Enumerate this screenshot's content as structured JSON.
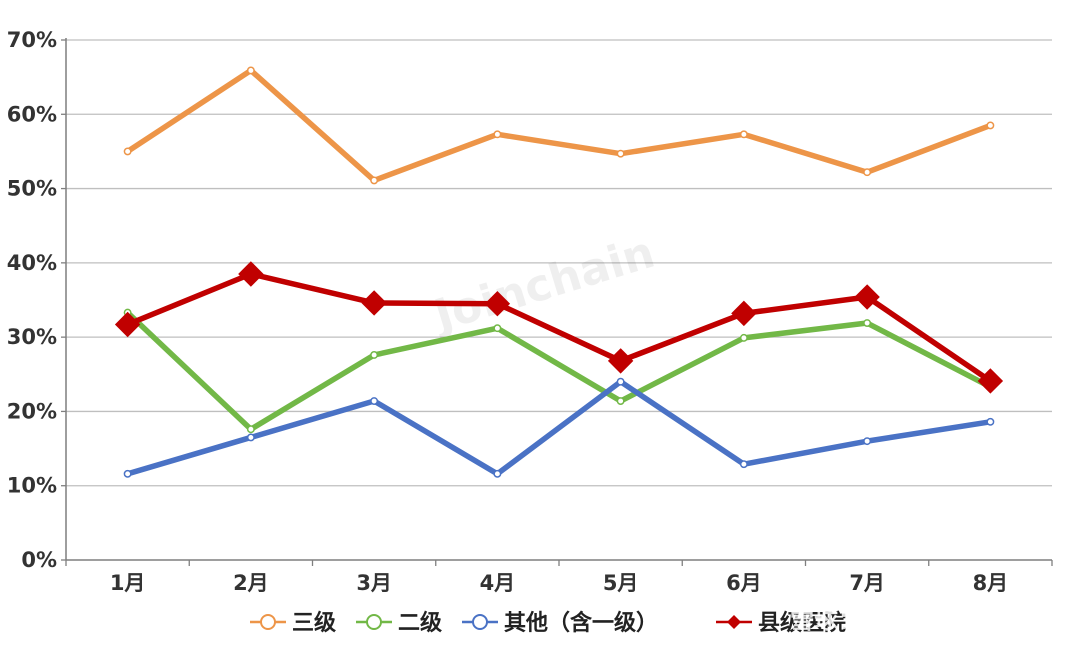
{
  "watermark": "Joinchain",
  "source_watermark": "雪球：众成数科",
  "chart_data": {
    "type": "line",
    "categories": [
      "1月",
      "2月",
      "3月",
      "4月",
      "5月",
      "6月",
      "7月",
      "8月"
    ],
    "ylim": [
      0,
      70
    ],
    "yticks": [
      "0%",
      "10%",
      "20%",
      "30%",
      "40%",
      "50%",
      "60%",
      "70%"
    ],
    "grid": true,
    "legend_position": "bottom",
    "series": [
      {
        "name": "三级",
        "color": "#ed9548",
        "marker": "circle",
        "values": [
          55.0,
          65.9,
          51.1,
          57.3,
          54.7,
          57.3,
          52.2,
          58.5
        ]
      },
      {
        "name": "二级",
        "color": "#72b847",
        "marker": "circle",
        "values": [
          33.3,
          17.6,
          27.6,
          31.2,
          21.4,
          29.9,
          31.9,
          23.3
        ]
      },
      {
        "name": "其他（含一级）",
        "color": "#4a72c5",
        "marker": "circle",
        "values": [
          11.6,
          16.5,
          21.4,
          11.6,
          24.0,
          12.9,
          16.0,
          18.6
        ]
      },
      {
        "name": "县级医院",
        "color": "#c00000",
        "marker": "diamond",
        "values": [
          31.7,
          38.5,
          34.6,
          34.5,
          26.8,
          33.2,
          35.4,
          24.1
        ]
      }
    ]
  }
}
